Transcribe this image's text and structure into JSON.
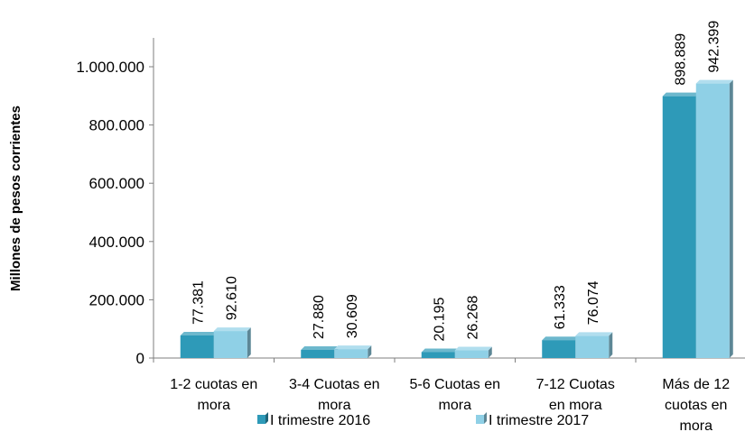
{
  "chart_data": {
    "type": "bar",
    "categories": [
      [
        "1-2 cuotas en",
        "mora"
      ],
      [
        "3-4 Cuotas en",
        "mora"
      ],
      [
        "5-6 Cuotas en",
        "mora"
      ],
      [
        "7-12 Cuotas",
        "en mora"
      ],
      [
        "Más de 12",
        "cuotas en",
        "mora"
      ]
    ],
    "series": [
      {
        "name": "I trimestre 2016",
        "values": [
          77381,
          27880,
          20195,
          61333,
          898889
        ],
        "labels": [
          "77.381",
          "27.880",
          "20.195",
          "61.333",
          "898.889"
        ],
        "color": "#2e9ab8"
      },
      {
        "name": "I trimestre 2017",
        "values": [
          92610,
          30609,
          26268,
          76074,
          942399
        ],
        "labels": [
          "92.610",
          "30.609",
          "26.268",
          "76.074",
          "942.399"
        ],
        "color": "#8fd0e6"
      }
    ],
    "ylabel": "Millones de pesos corrientes",
    "ylim": [
      0,
      1000000
    ],
    "yticks": [
      0,
      200000,
      400000,
      600000,
      800000,
      1000000
    ],
    "ytick_labels": [
      "0",
      "200.000",
      "400.000",
      "600.000",
      "800.000",
      "1.000.000"
    ],
    "grid": false,
    "legend_position": "bottom"
  }
}
